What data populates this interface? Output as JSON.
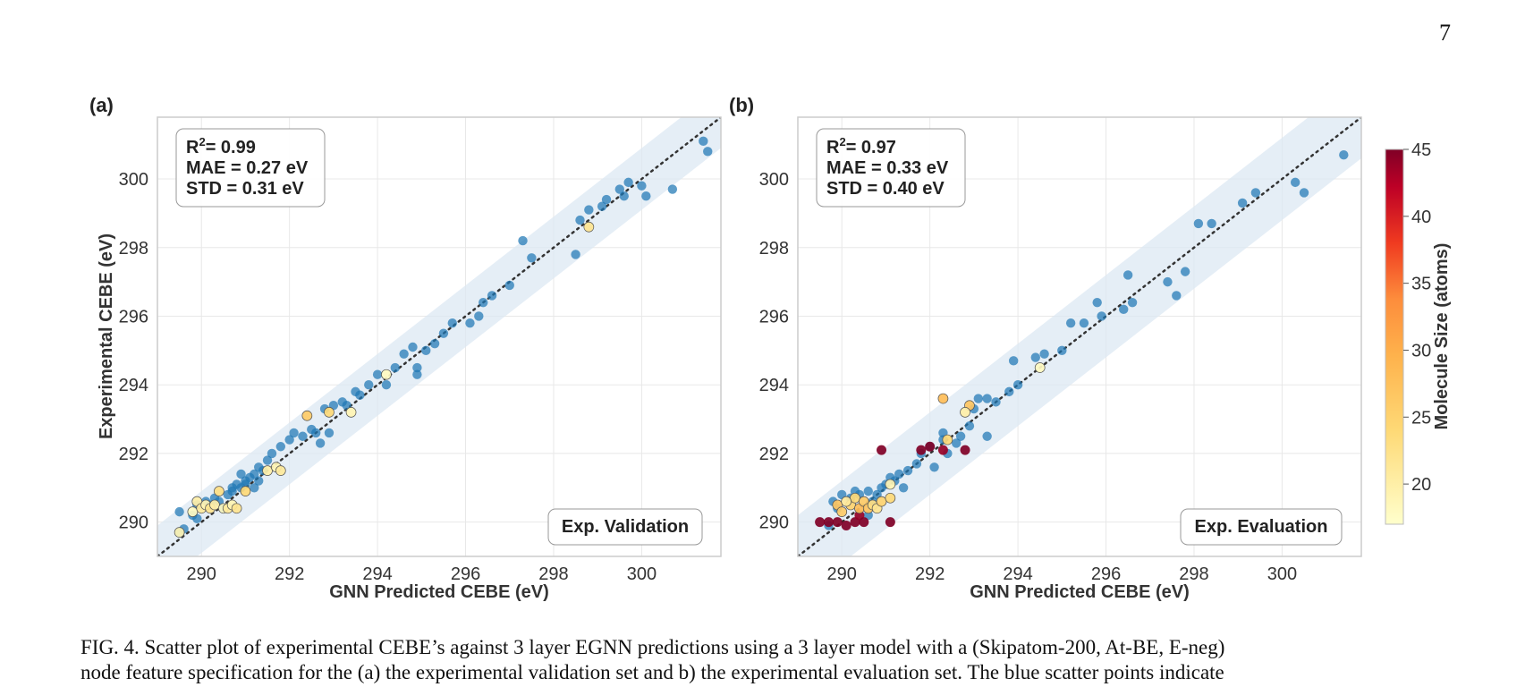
{
  "page_number": "7",
  "caption": {
    "line1": "FIG. 4. Scatter plot of experimental CEBE’s against 3 layer EGNN predictions using a 3 layer model with a (Skipatom-200, At-BE, E-neg)",
    "line2": "node feature specification for the (a) the experimental validation set and b) the experimental evaluation set. The blue scatter points indicate"
  },
  "colors": {
    "low_error_points": "#1f77b4",
    "band": "#dce8f3",
    "colormap": "YlOrRd"
  },
  "chart_data": [
    {
      "panel": "(a)",
      "type": "scatter",
      "xlabel": "GNN Predicted CEBE (eV)",
      "ylabel": "Experimental CEBE (eV)",
      "xlim": [
        289,
        301.8
      ],
      "ylim": [
        289,
        301.8
      ],
      "xticks": [
        290,
        292,
        294,
        296,
        298,
        300
      ],
      "yticks": [
        290,
        292,
        294,
        296,
        298,
        300
      ],
      "grid": true,
      "stats": {
        "r2": "= 0.99",
        "mae": "MAE = 0.27 eV",
        "std": "STD = 0.31 eV"
      },
      "corner_label": "Exp. Validation",
      "reference_line": "y = x",
      "band_halfwidth": 0.9,
      "blue_points": [
        [
          289.5,
          289.7
        ],
        [
          289.6,
          289.8
        ],
        [
          289.5,
          290.3
        ],
        [
          289.8,
          290.2
        ],
        [
          289.9,
          290.5
        ],
        [
          290.1,
          290.6
        ],
        [
          290.3,
          290.7
        ],
        [
          290.4,
          290.6
        ],
        [
          290.6,
          290.8
        ],
        [
          290.7,
          291.0
        ],
        [
          290.8,
          291.1
        ],
        [
          290.9,
          291.0
        ],
        [
          291.0,
          291.2
        ],
        [
          291.1,
          291.3
        ],
        [
          291.2,
          291.4
        ],
        [
          291.3,
          291.6
        ],
        [
          290.9,
          291.4
        ],
        [
          291.0,
          291.1
        ],
        [
          291.4,
          291.5
        ],
        [
          291.5,
          291.8
        ],
        [
          291.6,
          292.0
        ],
        [
          291.8,
          292.2
        ],
        [
          292.0,
          292.4
        ],
        [
          292.1,
          292.6
        ],
        [
          292.3,
          292.5
        ],
        [
          292.5,
          292.7
        ],
        [
          292.6,
          292.6
        ],
        [
          292.7,
          292.3
        ],
        [
          292.9,
          292.6
        ],
        [
          292.8,
          293.3
        ],
        [
          293.0,
          293.4
        ],
        [
          293.2,
          293.5
        ],
        [
          293.3,
          293.4
        ],
        [
          293.5,
          293.8
        ],
        [
          293.6,
          293.7
        ],
        [
          293.8,
          294.0
        ],
        [
          294.0,
          294.3
        ],
        [
          294.2,
          294.0
        ],
        [
          294.4,
          294.5
        ],
        [
          294.6,
          294.9
        ],
        [
          294.8,
          295.1
        ],
        [
          294.9,
          294.5
        ],
        [
          294.9,
          294.3
        ],
        [
          295.1,
          295.0
        ],
        [
          295.3,
          295.2
        ],
        [
          295.5,
          295.5
        ],
        [
          295.7,
          295.8
        ],
        [
          296.1,
          295.8
        ],
        [
          296.3,
          296.0
        ],
        [
          296.4,
          296.4
        ],
        [
          296.6,
          296.6
        ],
        [
          297.0,
          296.9
        ],
        [
          297.3,
          298.2
        ],
        [
          297.5,
          297.7
        ],
        [
          298.5,
          297.8
        ],
        [
          298.6,
          298.8
        ],
        [
          298.8,
          299.1
        ],
        [
          299.1,
          299.2
        ],
        [
          299.2,
          299.4
        ],
        [
          299.5,
          299.7
        ],
        [
          299.6,
          299.5
        ],
        [
          299.7,
          299.9
        ],
        [
          300.0,
          299.8
        ],
        [
          300.1,
          299.5
        ],
        [
          300.7,
          299.7
        ],
        [
          301.4,
          301.1
        ],
        [
          301.5,
          300.8
        ],
        [
          290.2,
          290.5
        ],
        [
          290.5,
          290.4
        ],
        [
          291.2,
          291.0
        ],
        [
          291.3,
          291.2
        ],
        [
          289.9,
          290.1
        ],
        [
          290.7,
          290.9
        ]
      ],
      "colored_points": [
        {
          "x": 289.5,
          "y": 289.7,
          "size": 19
        },
        {
          "x": 289.8,
          "y": 290.3,
          "size": 18
        },
        {
          "x": 289.9,
          "y": 290.6,
          "size": 20
        },
        {
          "x": 290.0,
          "y": 290.4,
          "size": 21
        },
        {
          "x": 290.1,
          "y": 290.5,
          "size": 19
        },
        {
          "x": 290.2,
          "y": 290.4,
          "size": 22
        },
        {
          "x": 290.3,
          "y": 290.5,
          "size": 20
        },
        {
          "x": 290.4,
          "y": 290.9,
          "size": 23
        },
        {
          "x": 290.5,
          "y": 290.4,
          "size": 18
        },
        {
          "x": 290.6,
          "y": 290.4,
          "size": 21
        },
        {
          "x": 290.7,
          "y": 290.5,
          "size": 19
        },
        {
          "x": 290.8,
          "y": 290.4,
          "size": 22
        },
        {
          "x": 291.0,
          "y": 290.9,
          "size": 24
        },
        {
          "x": 291.5,
          "y": 291.5,
          "size": 20
        },
        {
          "x": 291.7,
          "y": 291.6,
          "size": 19
        },
        {
          "x": 291.8,
          "y": 291.5,
          "size": 21
        },
        {
          "x": 292.4,
          "y": 293.1,
          "size": 26
        },
        {
          "x": 292.9,
          "y": 293.2,
          "size": 24
        },
        {
          "x": 293.4,
          "y": 293.2,
          "size": 19
        },
        {
          "x": 294.2,
          "y": 294.3,
          "size": 18
        },
        {
          "x": 298.8,
          "y": 298.6,
          "size": 22
        }
      ]
    },
    {
      "panel": "(b)",
      "type": "scatter",
      "xlabel": "GNN Predicted CEBE (eV)",
      "ylabel": "",
      "xlim": [
        289,
        301.8
      ],
      "ylim": [
        289,
        301.8
      ],
      "xticks": [
        290,
        292,
        294,
        296,
        298,
        300
      ],
      "yticks": [
        290,
        292,
        294,
        296,
        298,
        300
      ],
      "grid": true,
      "stats": {
        "r2": "= 0.97",
        "mae": "MAE = 0.33 eV",
        "std": "STD = 0.40 eV"
      },
      "corner_label": "Exp. Evaluation",
      "reference_line": "y = x",
      "band_halfwidth": 1.2,
      "blue_points": [
        [
          289.7,
          289.9
        ],
        [
          289.8,
          290.6
        ],
        [
          289.9,
          290.4
        ],
        [
          290.0,
          290.8
        ],
        [
          290.2,
          290.7
        ],
        [
          290.3,
          290.9
        ],
        [
          290.4,
          290.8
        ],
        [
          290.6,
          290.9
        ],
        [
          290.7,
          290.6
        ],
        [
          290.8,
          290.8
        ],
        [
          290.9,
          291.0
        ],
        [
          291.0,
          291.1
        ],
        [
          291.2,
          291.2
        ],
        [
          291.3,
          291.4
        ],
        [
          291.4,
          291.0
        ],
        [
          291.5,
          291.5
        ],
        [
          291.7,
          291.7
        ],
        [
          291.8,
          292.0
        ],
        [
          292.0,
          292.2
        ],
        [
          292.1,
          291.6
        ],
        [
          292.3,
          292.4
        ],
        [
          292.4,
          292.0
        ],
        [
          292.6,
          292.3
        ],
        [
          292.7,
          292.5
        ],
        [
          292.9,
          292.8
        ],
        [
          293.0,
          293.3
        ],
        [
          293.1,
          293.6
        ],
        [
          293.3,
          293.6
        ],
        [
          293.5,
          293.5
        ],
        [
          293.8,
          293.8
        ],
        [
          293.9,
          294.7
        ],
        [
          294.0,
          294.0
        ],
        [
          294.4,
          294.8
        ],
        [
          294.6,
          294.9
        ],
        [
          295.0,
          295.0
        ],
        [
          295.2,
          295.8
        ],
        [
          295.5,
          295.8
        ],
        [
          295.8,
          296.4
        ],
        [
          295.9,
          296.0
        ],
        [
          296.4,
          296.2
        ],
        [
          296.5,
          297.2
        ],
        [
          296.6,
          296.4
        ],
        [
          297.4,
          297.0
        ],
        [
          297.6,
          296.6
        ],
        [
          297.8,
          297.3
        ],
        [
          298.1,
          298.7
        ],
        [
          298.4,
          298.7
        ],
        [
          299.1,
          299.3
        ],
        [
          299.4,
          299.6
        ],
        [
          300.3,
          299.9
        ],
        [
          300.5,
          299.6
        ],
        [
          301.4,
          300.7
        ],
        [
          291.1,
          291.3
        ],
        [
          290.6,
          290.2
        ],
        [
          292.3,
          292.6
        ],
        [
          293.3,
          292.5
        ]
      ],
      "colored_points": [
        {
          "x": 289.5,
          "y": 290.0,
          "size": 45
        },
        {
          "x": 289.7,
          "y": 290.0,
          "size": 45
        },
        {
          "x": 289.9,
          "y": 290.0,
          "size": 45
        },
        {
          "x": 290.1,
          "y": 289.9,
          "size": 45
        },
        {
          "x": 290.3,
          "y": 290.0,
          "size": 45
        },
        {
          "x": 290.4,
          "y": 290.2,
          "size": 44
        },
        {
          "x": 290.5,
          "y": 290.0,
          "size": 45
        },
        {
          "x": 291.1,
          "y": 290.0,
          "size": 45
        },
        {
          "x": 290.9,
          "y": 292.1,
          "size": 45
        },
        {
          "x": 291.8,
          "y": 292.1,
          "size": 45
        },
        {
          "x": 292.0,
          "y": 292.2,
          "size": 45
        },
        {
          "x": 292.3,
          "y": 292.1,
          "size": 44
        },
        {
          "x": 292.8,
          "y": 292.1,
          "size": 45
        },
        {
          "x": 289.9,
          "y": 290.5,
          "size": 27
        },
        {
          "x": 290.0,
          "y": 290.3,
          "size": 26
        },
        {
          "x": 290.2,
          "y": 290.5,
          "size": 25
        },
        {
          "x": 290.3,
          "y": 290.7,
          "size": 24
        },
        {
          "x": 290.4,
          "y": 290.4,
          "size": 28
        },
        {
          "x": 290.5,
          "y": 290.6,
          "size": 26
        },
        {
          "x": 290.6,
          "y": 290.4,
          "size": 27
        },
        {
          "x": 290.7,
          "y": 290.5,
          "size": 23
        },
        {
          "x": 290.8,
          "y": 290.4,
          "size": 22
        },
        {
          "x": 290.9,
          "y": 290.6,
          "size": 25
        },
        {
          "x": 291.1,
          "y": 290.7,
          "size": 24
        },
        {
          "x": 290.1,
          "y": 290.6,
          "size": 21
        },
        {
          "x": 291.1,
          "y": 291.1,
          "size": 19
        },
        {
          "x": 292.3,
          "y": 293.6,
          "size": 28
        },
        {
          "x": 292.4,
          "y": 292.4,
          "size": 24
        },
        {
          "x": 292.9,
          "y": 293.4,
          "size": 27
        },
        {
          "x": 292.8,
          "y": 293.2,
          "size": 20
        },
        {
          "x": 294.5,
          "y": 294.5,
          "size": 18
        }
      ]
    }
  ],
  "colorbar": {
    "label": "Molecule Size (atoms)",
    "min": 17,
    "max": 45,
    "ticks": [
      20,
      25,
      30,
      35,
      40,
      45
    ]
  }
}
